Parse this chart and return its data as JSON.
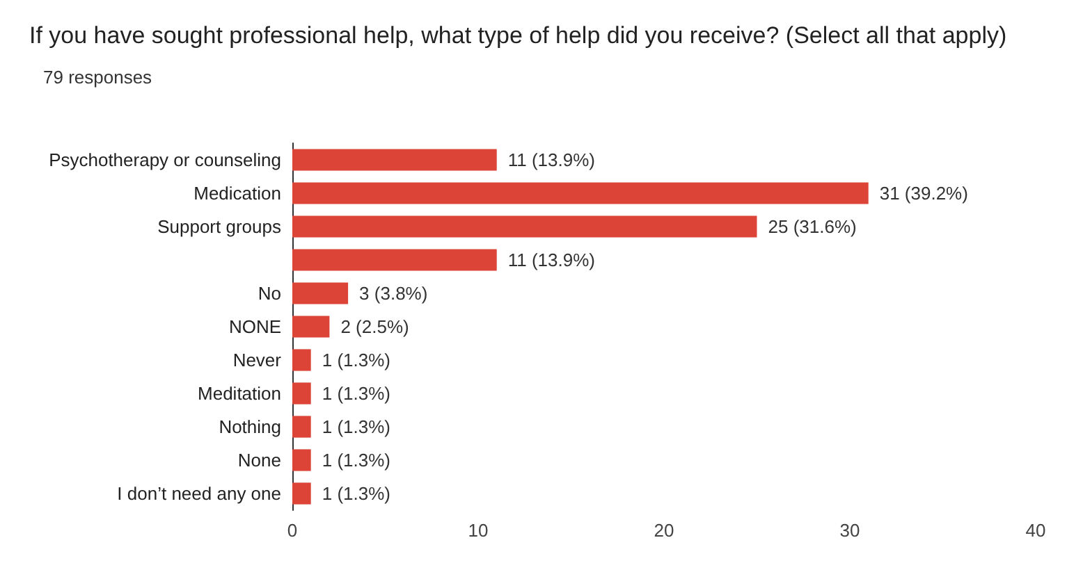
{
  "chart_data": {
    "type": "bar",
    "orientation": "horizontal",
    "title": "If you have sought professional help, what type of help did you receive? (Select all that apply)",
    "subtitle": "79 responses",
    "categories": [
      "Psychotherapy or counseling",
      "Medication",
      "Support groups",
      null,
      "No",
      "NONE",
      "Never",
      "Meditation",
      "Nothing",
      "None",
      "I don’t need any one"
    ],
    "values": [
      11,
      31,
      25,
      11,
      3,
      2,
      1,
      1,
      1,
      1,
      1
    ],
    "value_labels": [
      "11 (13.9%)",
      "31 (39.2%)",
      "25 (31.6%)",
      "11 (13.9%)",
      "3 (3.8%)",
      "2 (2.5%)",
      "1 (1.3%)",
      "1 (1.3%)",
      "1 (1.3%)",
      "1 (1.3%)",
      "1 (1.3%)"
    ],
    "color": "#db4437",
    "xlim": [
      0,
      40
    ],
    "xticks": [
      0,
      10,
      20,
      30,
      40
    ]
  }
}
